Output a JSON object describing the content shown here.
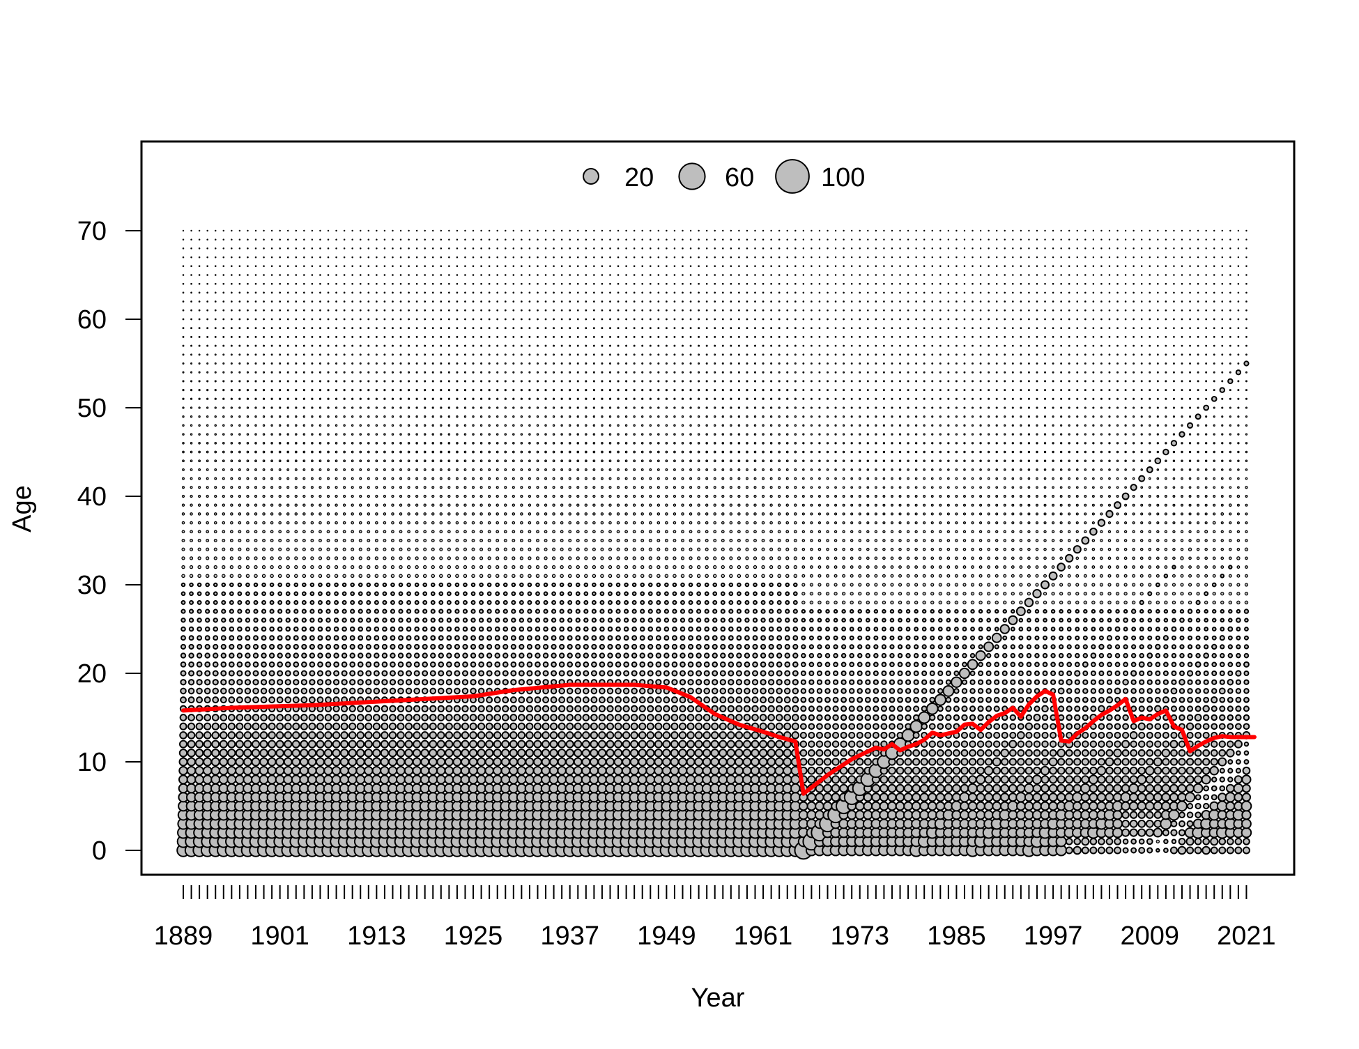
{
  "chart_data": {
    "type": "scatter",
    "subtype": "bubble-plot-with-mean-age-line",
    "xlabel": "Year",
    "ylabel": "Age",
    "x_range": [
      1889,
      2022
    ],
    "y_range": [
      0,
      70
    ],
    "x_tick_labels": [
      "1889",
      "1901",
      "1913",
      "1925",
      "1937",
      "1949",
      "1961",
      "1973",
      "1985",
      "1997",
      "2009",
      "2021"
    ],
    "y_tick_labels": [
      "0",
      "10",
      "20",
      "30",
      "40",
      "50",
      "60",
      "70"
    ],
    "grid": false,
    "legend": {
      "placement": "top-center",
      "entries": [
        {
          "label": "20",
          "value": 20
        },
        {
          "label": "60",
          "value": 60
        },
        {
          "label": "100",
          "value": 100
        }
      ]
    },
    "colors": {
      "bubble_fill": "#bebebe",
      "bubble_stroke": "#000000",
      "mean_line": "#ff0000"
    },
    "bubble_model": {
      "note_key": "approximate numbers-at-age pattern",
      "base_decline": "smaller with age",
      "strong_cohort_years": [
        1966,
        1967,
        1968,
        1969,
        1970
      ],
      "major_cohort_birth_year": 1966
    },
    "mean_age_series": {
      "name": "",
      "x": [
        1889,
        1895,
        1905,
        1915,
        1925,
        1930,
        1937,
        1945,
        1949,
        1952,
        1955,
        1958,
        1961,
        1963,
        1965,
        1966,
        1969,
        1972,
        1975,
        1976,
        1977,
        1978,
        1979,
        1980,
        1981,
        1982,
        1983,
        1984,
        1985,
        1986,
        1987,
        1988,
        1989,
        1990,
        1991,
        1992,
        1993,
        1994,
        1995,
        1996,
        1997,
        1998,
        1999,
        2000,
        2001,
        2002,
        2003,
        2004,
        2005,
        2006,
        2007,
        2008,
        2009,
        2010,
        2011,
        2012,
        2013,
        2014,
        2015,
        2016,
        2017,
        2018,
        2019,
        2020,
        2021,
        2022
      ],
      "y": [
        15.8,
        16.1,
        16.4,
        16.9,
        17.4,
        18.1,
        18.7,
        18.7,
        18.4,
        17.3,
        15.4,
        14.2,
        13.4,
        12.8,
        12.3,
        6.4,
        8.5,
        10.3,
        11.6,
        11.4,
        12.0,
        11.3,
        11.7,
        12.0,
        12.5,
        13.3,
        13.0,
        13.2,
        13.4,
        14.2,
        14.3,
        13.6,
        14.5,
        15.2,
        15.5,
        16.1,
        15.1,
        16.5,
        17.4,
        18.0,
        17.6,
        12.4,
        12.3,
        13.2,
        13.8,
        14.6,
        15.3,
        15.8,
        16.4,
        17.1,
        14.6,
        15.0,
        14.8,
        15.4,
        15.8,
        14.0,
        13.6,
        11.2,
        11.8,
        12.3,
        12.7,
        12.9,
        12.8,
        12.8,
        12.8,
        12.8
      ]
    }
  }
}
